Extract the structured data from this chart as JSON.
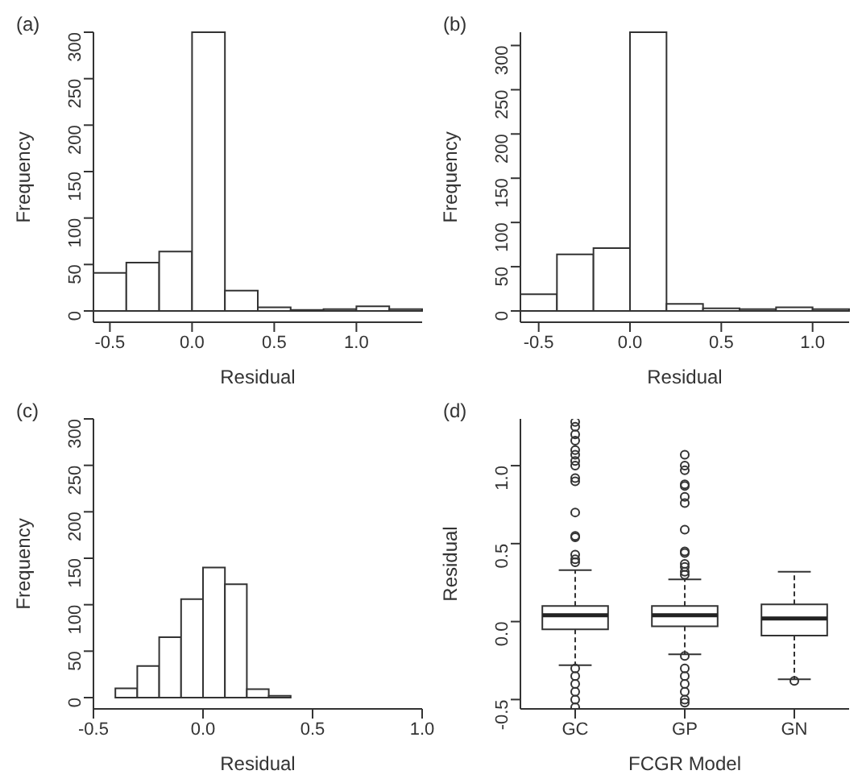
{
  "chart_data": [
    {
      "type": "histogram",
      "title": "(a)",
      "xlabel": "Residual",
      "ylabel": "Frequency",
      "color": "#ffffff",
      "bins": [
        -0.6,
        -0.4,
        -0.2,
        0.0,
        0.2,
        0.4,
        0.6,
        0.8,
        1.0,
        1.2,
        1.4
      ],
      "values": [
        41,
        52,
        64,
        300,
        22,
        4,
        1,
        2,
        5,
        2
      ],
      "xlim": [
        -0.6,
        1.4
      ],
      "xticks": [
        {
          "value": -0.5,
          "label": "-0.5"
        },
        {
          "value": 0,
          "label": "0.0"
        },
        {
          "value": 0.5,
          "label": "0.5"
        },
        {
          "value": 1,
          "label": "1.0"
        }
      ],
      "ylim": [
        0,
        300
      ],
      "yticks": [
        0,
        50,
        100,
        150,
        200,
        250,
        300
      ]
    },
    {
      "type": "histogram",
      "title": "(b)",
      "xlabel": "Residual",
      "ylabel": "Frequency",
      "color": "#ffffff",
      "bins": [
        -0.6,
        -0.4,
        -0.2,
        0.0,
        0.2,
        0.4,
        0.6,
        0.8,
        1.0,
        1.2
      ],
      "values": [
        19,
        64,
        71,
        315,
        8,
        3,
        2,
        4,
        2
      ],
      "xlim": [
        -0.6,
        1.2
      ],
      "xticks": [
        {
          "value": -0.5,
          "label": "-0.5"
        },
        {
          "value": 0,
          "label": "0.0"
        },
        {
          "value": 0.5,
          "label": "0.5"
        },
        {
          "value": 1,
          "label": "1.0"
        }
      ],
      "ylim": [
        0,
        315
      ],
      "yticks": [
        0,
        50,
        100,
        150,
        200,
        250,
        300
      ]
    },
    {
      "type": "histogram",
      "title": "(c)",
      "xlabel": "Residual",
      "ylabel": "Frequency",
      "color": "#ffffff",
      "bins": [
        -0.4,
        -0.3,
        -0.2,
        -0.1,
        0.0,
        0.1,
        0.2,
        0.3,
        0.4
      ],
      "values": [
        10,
        34,
        65,
        106,
        140,
        122,
        9,
        2
      ],
      "xlim": [
        -0.5,
        1.0
      ],
      "xticks": [
        {
          "value": -0.5,
          "label": "-0.5"
        },
        {
          "value": 0,
          "label": "0.0"
        },
        {
          "value": 0.5,
          "label": "0.5"
        },
        {
          "value": 1,
          "label": "1.0"
        }
      ],
      "ylim": [
        0,
        300
      ],
      "yticks": [
        0,
        50,
        100,
        150,
        200,
        250,
        300
      ]
    },
    {
      "type": "box",
      "title": "(d)",
      "xlabel": "FCGR Model",
      "ylabel": "Residual",
      "categories": [
        "GC",
        "GP",
        "GN"
      ],
      "ylim": [
        -0.56,
        1.3
      ],
      "yticks": [
        {
          "value": -0.5,
          "label": "-0.5"
        },
        {
          "value": 0,
          "label": "0.0"
        },
        {
          "value": 0.5,
          "label": "0.5"
        },
        {
          "value": 1,
          "label": "1.0"
        }
      ],
      "boxes": [
        {
          "low": -0.28,
          "q1": -0.05,
          "median": 0.04,
          "q3": 0.1,
          "high": 0.33,
          "outliers": [
            1.28,
            1.25,
            1.2,
            1.16,
            1.1,
            1.07,
            1.03,
            1.0,
            0.92,
            0.9,
            0.7,
            0.55,
            0.54,
            0.43,
            0.4,
            0.38,
            -0.3,
            -0.35,
            -0.4,
            -0.45,
            -0.5,
            -0.55
          ]
        },
        {
          "low": -0.21,
          "q1": -0.03,
          "median": 0.04,
          "q3": 0.1,
          "high": 0.27,
          "outliers": [
            1.07,
            1.0,
            0.97,
            0.88,
            0.87,
            0.8,
            0.76,
            0.59,
            0.45,
            0.44,
            0.37,
            0.35,
            0.32,
            0.3,
            -0.22,
            -0.3,
            -0.35,
            -0.4,
            -0.45,
            -0.5,
            -0.52
          ]
        },
        {
          "low": -0.37,
          "q1": -0.09,
          "median": 0.02,
          "q3": 0.11,
          "high": 0.32,
          "outliers": [
            -0.38
          ]
        }
      ]
    }
  ]
}
